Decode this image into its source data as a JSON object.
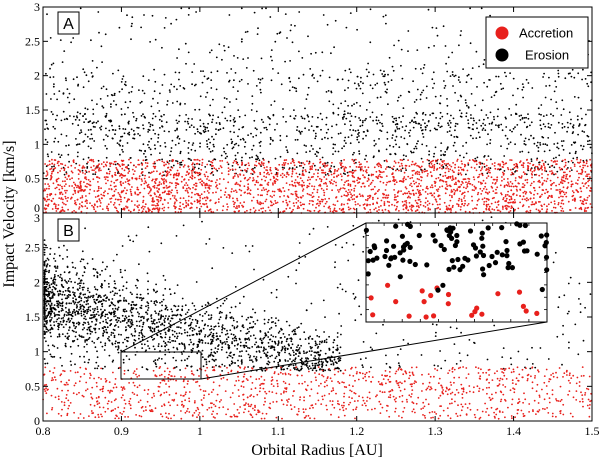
{
  "chart_data": {
    "type": "scatter",
    "xlabel": "Orbital Radius [AU]",
    "ylabel": "Impact Velocity [km/s]",
    "xlim": [
      0.8,
      1.5
    ],
    "ylim": [
      0,
      3
    ],
    "x_ticks": [
      "0.8",
      "0.9",
      "1",
      "1.1",
      "1.2",
      "1.3",
      "1.4",
      "1.5"
    ],
    "y_ticks": [
      "0",
      "0.5",
      "1",
      "1.5",
      "2",
      "2.5",
      "3"
    ],
    "legend": {
      "placement": "top-right of panel A",
      "entries": [
        {
          "label": "Accretion",
          "color": "#e8201c"
        },
        {
          "label": "Erosion",
          "color": "#000000"
        }
      ]
    },
    "panels": [
      {
        "label": "A",
        "series": [
          {
            "name": "Accretion",
            "color": "#e8201c",
            "description": "dense uniform band",
            "x_range": [
              0.8,
              1.5
            ],
            "y_range": [
              0,
              0.78
            ],
            "approx_points": 2600
          },
          {
            "name": "Erosion",
            "color": "#000000",
            "description": "scattered above accretion band, densest near 0.8-1.5 km/s",
            "x_range": [
              0.8,
              1.5
            ],
            "y_range": [
              0.45,
              3.0
            ],
            "approx_points": 1600
          }
        ]
      },
      {
        "label": "B",
        "series": [
          {
            "name": "Accretion",
            "color": "#e8201c",
            "description": "sparser band",
            "x_range": [
              0.8,
              1.5
            ],
            "y_range": [
              0,
              0.78
            ],
            "approx_points": 1100
          },
          {
            "name": "Erosion",
            "color": "#000000",
            "description": "dense cloud decreasing from ~1.7 km/s at 0.8 AU to ~0.9 km/s at 1.15 AU, plus sparse scatter beyond",
            "x_range": [
              0.8,
              1.5
            ],
            "y_range": [
              0.6,
              3.0
            ],
            "approx_points": 2100
          }
        ],
        "zoom_box": {
          "x_range": [
            0.9,
            1.0
          ],
          "y_range": [
            0.6,
            1.0
          ],
          "inset_placement": "upper-right of panel B"
        }
      }
    ],
    "grid": false
  }
}
